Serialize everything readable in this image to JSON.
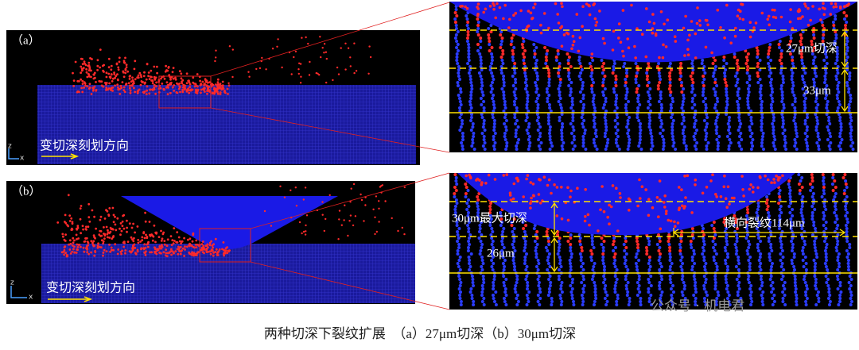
{
  "panels": [
    {
      "label": "（a）",
      "axis_z": "z",
      "axis_x": "x",
      "direction": "变切深刻划方向",
      "zoom_labels": [
        "27μm切深",
        "33μm"
      ]
    },
    {
      "label": "（b）",
      "axis_z": "z",
      "axis_x": "x",
      "direction": "变切深刻划方向",
      "zoom_labels": [
        "30μm最大切深",
        "26μm",
        "横向裂纹114μm"
      ]
    }
  ],
  "watermark": "公众号 · 机电君",
  "caption": "两种切深下裂纹扩展　（a）27μm切深（b）30μm切深"
}
